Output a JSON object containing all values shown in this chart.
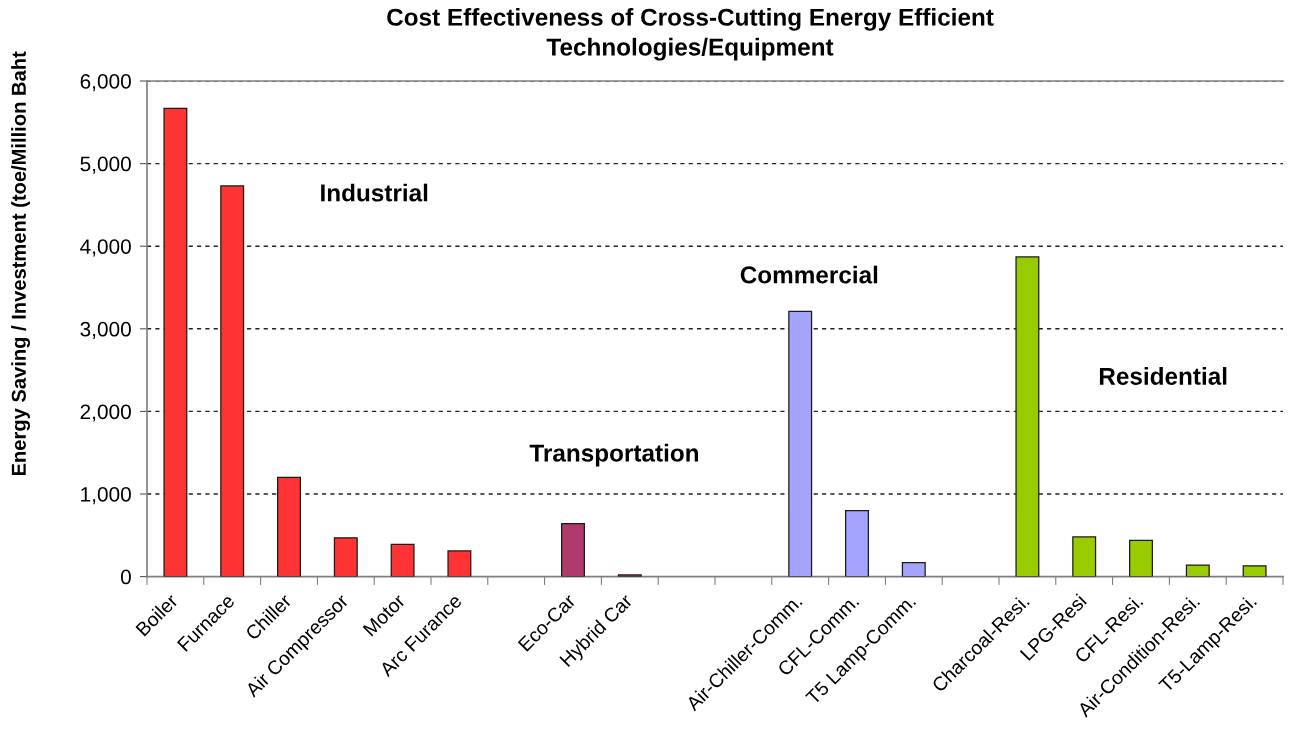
{
  "chart_data": {
    "type": "bar",
    "title": "Cost Effectiveness of Cross-Cutting Energy Efficient\nTechnologies/Equipment",
    "ylabel": "Energy Saving / Investment (toe/Million Baht",
    "categories": [
      "Boiler",
      "Furnace",
      "Chiller",
      "Air Compressor",
      "Motor",
      "Arc Furance",
      null,
      "Eco-Car",
      "Hybrid Car",
      null,
      null,
      "Air-Chiller-Comm.",
      "CFL-Comm.",
      "T5 Lamp-Comm.",
      null,
      "Charcoal-Resi.",
      "LPG-Resi",
      "CFL-Resi.",
      "Air-Condition-Resi.",
      "T5-Lamp-Resi."
    ],
    "series": [
      {
        "color": "#ff3333",
        "values": [
          5670,
          4730,
          1200,
          470,
          390,
          310,
          null,
          null,
          null,
          null,
          null,
          null,
          null,
          null,
          null,
          null,
          null,
          null,
          null,
          null
        ]
      },
      {
        "color": "#b03a6c",
        "values": [
          null,
          null,
          null,
          null,
          null,
          null,
          null,
          640,
          20,
          null,
          null,
          null,
          null,
          null,
          null,
          null,
          null,
          null,
          null,
          null
        ]
      },
      {
        "color": "#a4a4ff",
        "values": [
          null,
          null,
          null,
          null,
          null,
          null,
          null,
          null,
          null,
          null,
          null,
          3210,
          800,
          170,
          null,
          null,
          null,
          null,
          null,
          null
        ]
      },
      {
        "color": "#99cc00",
        "values": [
          null,
          null,
          null,
          null,
          null,
          null,
          null,
          null,
          null,
          null,
          null,
          null,
          null,
          null,
          null,
          3870,
          480,
          440,
          140,
          130
        ]
      }
    ],
    "annotations": [
      "Industrial",
      "Transportation",
      "Commercial",
      "Residential"
    ],
    "ylim": [
      0,
      6000
    ],
    "yticks": [
      0,
      {
        "value": 1000,
        "label": "1,000"
      },
      {
        "value": 2000,
        "label": "2,000"
      },
      {
        "value": 3000,
        "label": "3,000"
      },
      {
        "value": 4000,
        "label": "4,000"
      },
      {
        "value": 5000,
        "label": "5,000"
      },
      {
        "value": 6000,
        "label": "6,000"
      }
    ],
    "grid": "y"
  }
}
